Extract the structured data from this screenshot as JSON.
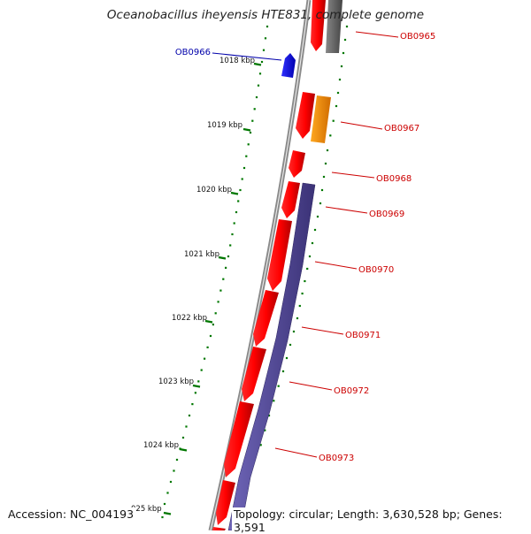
{
  "map": {
    "title": "Oceanobacillus iheyensis HTE831, complete genome",
    "accession_text": "Accession: NC_004193",
    "stats_text": "Topology: circular; Length: 3,630,528 bp; Genes: 3,591",
    "colors": {
      "backbone": "#8a8a8a",
      "cds_forward": "#ff0000",
      "cds_reverse": "#0000ff",
      "grey_feature": "#666666",
      "orange_feature": "#ff8c00",
      "purple_track": "#4a3f8f",
      "tick_marks": "#007700",
      "label_forward": "#cc0000",
      "label_reverse": "#0000aa"
    }
  },
  "scale_ticks": [
    {
      "label": "1018 kbp"
    },
    {
      "label": "1019 kbp"
    },
    {
      "label": "1020 kbp"
    },
    {
      "label": "1021 kbp"
    },
    {
      "label": "1022 kbp"
    },
    {
      "label": "1023 kbp"
    },
    {
      "label": "1024 kbp"
    },
    {
      "label": "025 kbp"
    }
  ],
  "gene_labels": [
    {
      "label": "OB0965",
      "strand": "forward"
    },
    {
      "label": "OB0966",
      "strand": "reverse"
    },
    {
      "label": "OB0967",
      "strand": "forward"
    },
    {
      "label": "OB0968",
      "strand": "forward"
    },
    {
      "label": "OB0969",
      "strand": "forward"
    },
    {
      "label": "OB0970",
      "strand": "forward"
    },
    {
      "label": "OB0971",
      "strand": "forward"
    },
    {
      "label": "OB0972",
      "strand": "forward"
    },
    {
      "label": "OB0973",
      "strand": "forward"
    }
  ]
}
